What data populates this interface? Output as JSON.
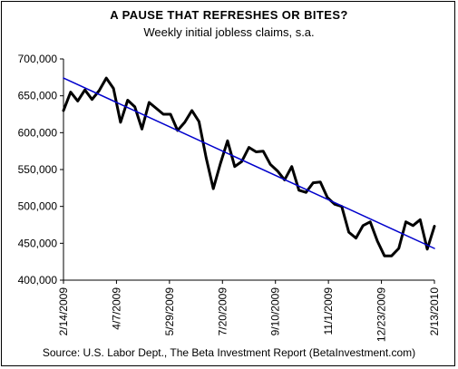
{
  "chart_data": {
    "type": "line",
    "title": "A PAUSE THAT REFRESHES OR BITES?",
    "subtitle": "Weekly initial jobless claims, s.a.",
    "source": "Source: U.S. Labor Dept., The Beta Investment Report (BetaInvestment.com)",
    "xlabel": "",
    "ylabel": "",
    "ylim": [
      400000,
      700000
    ],
    "yticks": [
      400000,
      450000,
      500000,
      550000,
      600000,
      650000,
      700000
    ],
    "ytick_labels": [
      "400,000",
      "450,000",
      "500,000",
      "550,000",
      "600,000",
      "650,000",
      "700,000"
    ],
    "xlim": [
      "2/14/2009",
      "2/13/2010"
    ],
    "xticks": [
      "2/14/2009",
      "4/7/2009",
      "5/29/2009",
      "7/20/2009",
      "9/10/2009",
      "11/1/2009",
      "12/23/2009",
      "2/13/2010"
    ],
    "grid": false,
    "legend": "none",
    "series": [
      {
        "color": "#000000",
        "points": [
          [
            "2009-02-14",
            630000
          ],
          [
            "2009-02-21",
            655000
          ],
          [
            "2009-02-28",
            643000
          ],
          [
            "2009-03-07",
            658000
          ],
          [
            "2009-03-14",
            645000
          ],
          [
            "2009-03-21",
            657000
          ],
          [
            "2009-03-28",
            674000
          ],
          [
            "2009-04-04",
            660000
          ],
          [
            "2009-04-11",
            614000
          ],
          [
            "2009-04-18",
            644000
          ],
          [
            "2009-04-25",
            635000
          ],
          [
            "2009-05-02",
            605000
          ],
          [
            "2009-05-09",
            641000
          ],
          [
            "2009-05-16",
            633000
          ],
          [
            "2009-05-23",
            625000
          ],
          [
            "2009-05-30",
            625000
          ],
          [
            "2009-06-06",
            603000
          ],
          [
            "2009-06-13",
            614000
          ],
          [
            "2009-06-20",
            630000
          ],
          [
            "2009-06-27",
            615000
          ],
          [
            "2009-07-04",
            566000
          ],
          [
            "2009-07-11",
            524000
          ],
          [
            "2009-07-18",
            558000
          ],
          [
            "2009-07-25",
            589000
          ],
          [
            "2009-08-01",
            554000
          ],
          [
            "2009-08-08",
            561000
          ],
          [
            "2009-08-15",
            580000
          ],
          [
            "2009-08-22",
            574000
          ],
          [
            "2009-08-29",
            575000
          ],
          [
            "2009-09-05",
            557000
          ],
          [
            "2009-09-12",
            548000
          ],
          [
            "2009-09-19",
            536000
          ],
          [
            "2009-09-26",
            554000
          ],
          [
            "2009-10-03",
            522000
          ],
          [
            "2009-10-10",
            519000
          ],
          [
            "2009-10-17",
            532000
          ],
          [
            "2009-10-24",
            533000
          ],
          [
            "2009-10-31",
            512000
          ],
          [
            "2009-11-07",
            503000
          ],
          [
            "2009-11-14",
            500000
          ],
          [
            "2009-11-21",
            465000
          ],
          [
            "2009-11-28",
            457000
          ],
          [
            "2009-12-05",
            474000
          ],
          [
            "2009-12-12",
            479000
          ],
          [
            "2009-12-19",
            453000
          ],
          [
            "2009-12-26",
            433000
          ],
          [
            "2010-01-02",
            433000
          ],
          [
            "2010-01-09",
            443000
          ],
          [
            "2010-01-16",
            479000
          ],
          [
            "2010-01-23",
            474000
          ],
          [
            "2010-01-30",
            482000
          ],
          [
            "2010-02-06",
            442000
          ],
          [
            "2010-02-13",
            473000
          ]
        ]
      },
      {
        "color": "#0000cc",
        "points": [
          [
            "2009-02-14",
            674000
          ],
          [
            "2010-02-13",
            443000
          ]
        ]
      }
    ]
  }
}
